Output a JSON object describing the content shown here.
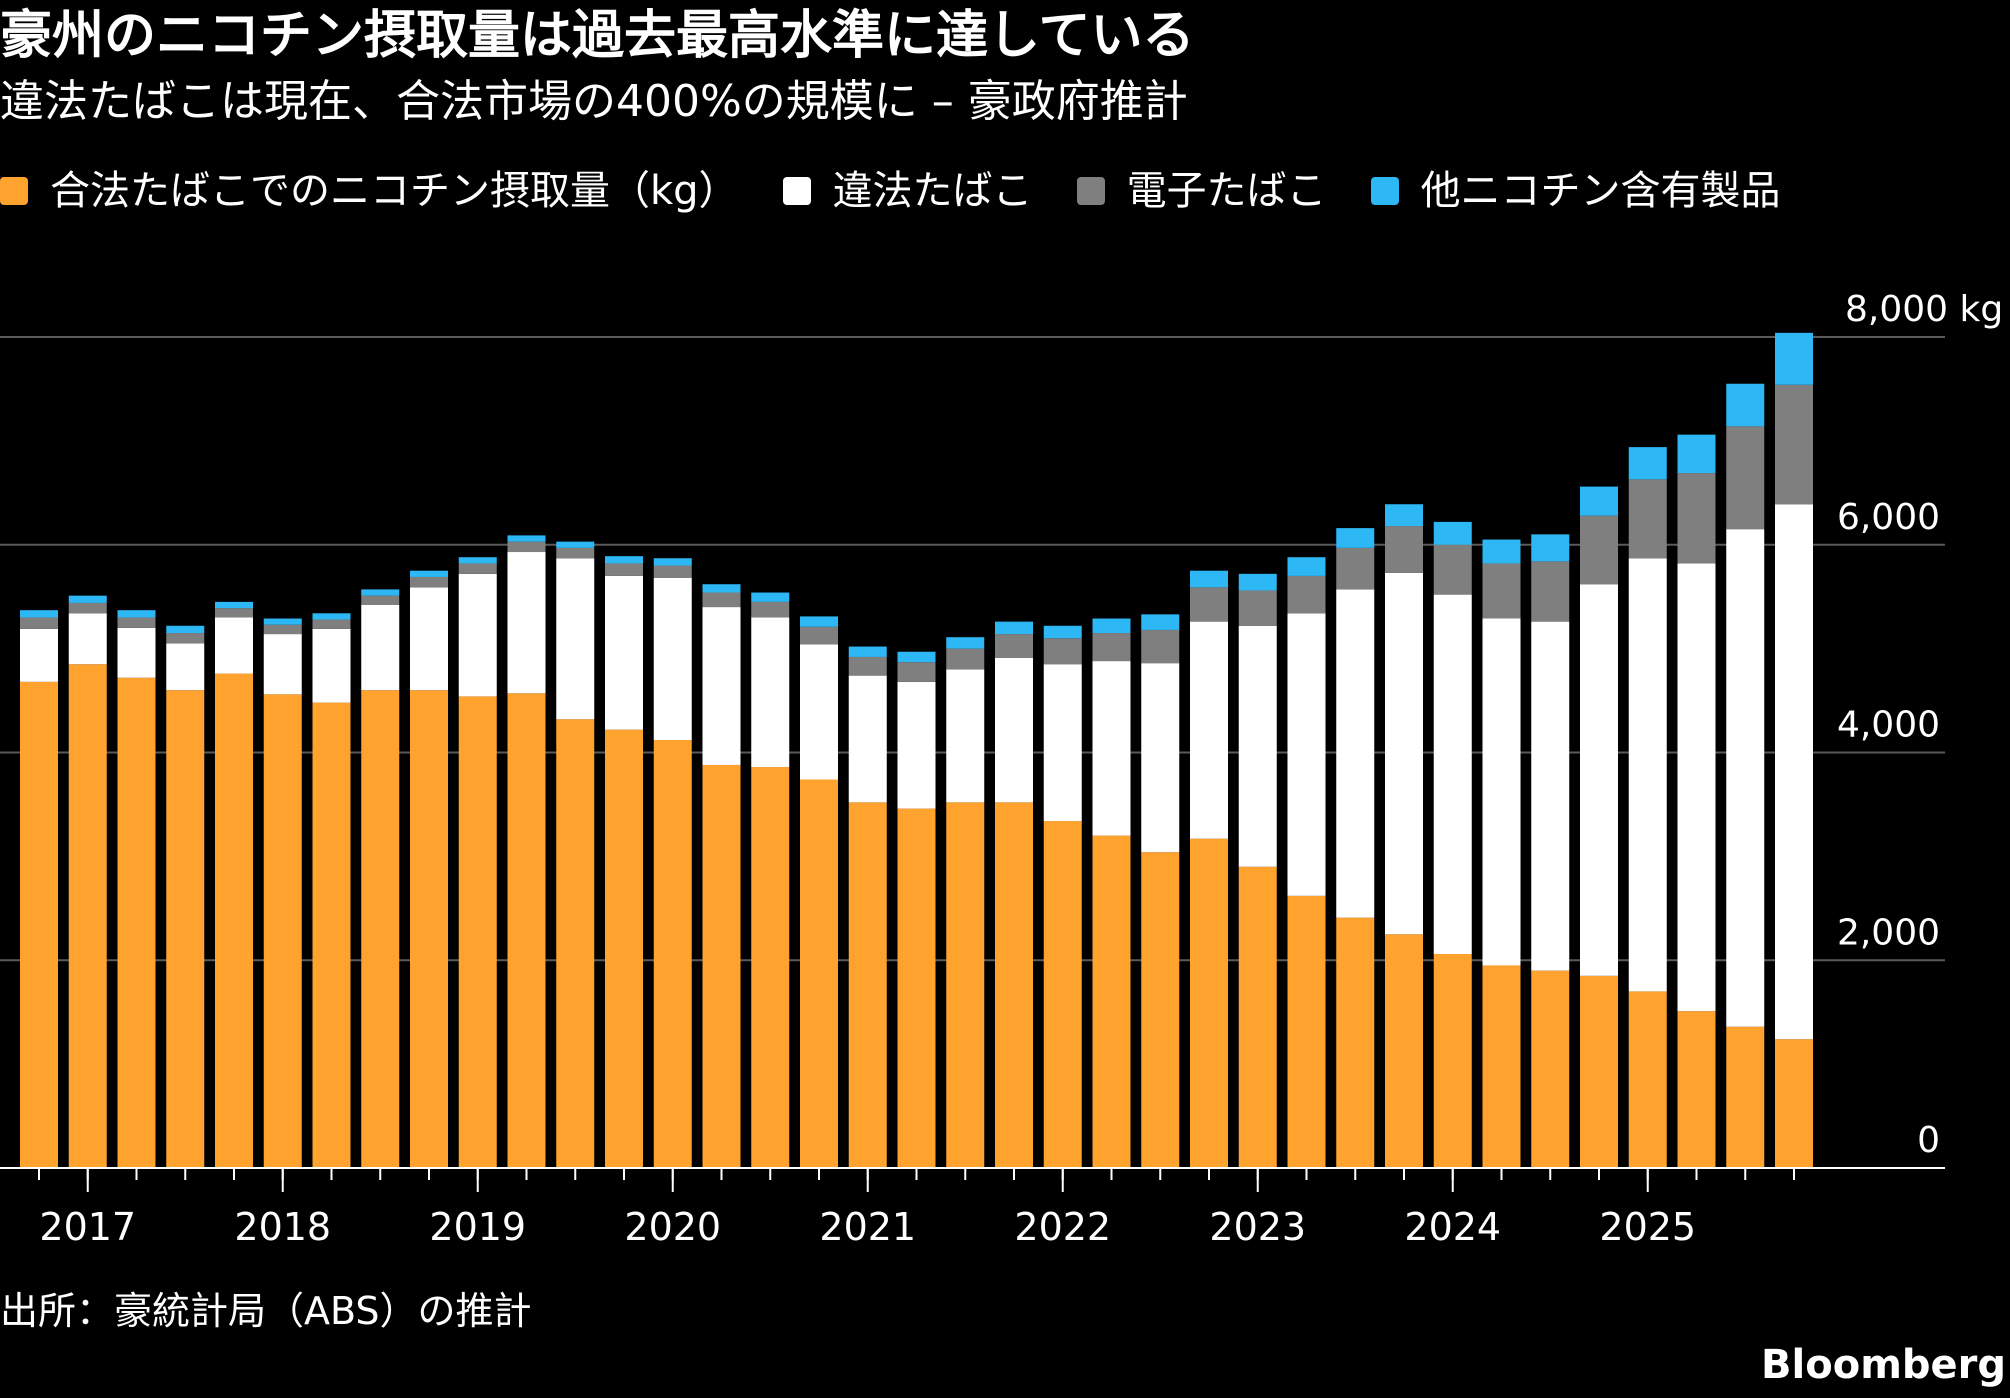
{
  "title": "豪州のニコチン摂取量は過去最高水準に達している",
  "subtitle": "違法たばこは現在、合法市場の400%の規模に – 豪政府推計",
  "source": "出所：豪統計局（ABS）の推計",
  "brand": "Bloomberg",
  "colors": {
    "background": "#000000",
    "legal": "#FFA22E",
    "illicit": "#FFFFFF",
    "ecig": "#7F7F7F",
    "other": "#2DB8F5",
    "grid": "#5A5A5A",
    "axis": "#FFFFFF"
  },
  "chart_data": {
    "type": "bar",
    "stacked": true,
    "categories": [
      "2016Q4",
      "2017Q1",
      "2017Q2",
      "2017Q3",
      "2017Q4",
      "2018Q1",
      "2018Q2",
      "2018Q3",
      "2018Q4",
      "2019Q1",
      "2019Q2",
      "2019Q3",
      "2019Q4",
      "2020Q1",
      "2020Q2",
      "2020Q3",
      "2020Q4",
      "2021Q1",
      "2021Q2",
      "2021Q3",
      "2021Q4",
      "2022Q1",
      "2022Q2",
      "2022Q3",
      "2022Q4",
      "2023Q1",
      "2023Q2",
      "2023Q3",
      "2023Q4",
      "2024Q1",
      "2024Q2",
      "2024Q3",
      "2024Q4",
      "2025Q1",
      "2025Q2",
      "2025Q3",
      "2025Q4"
    ],
    "series": [
      {
        "name": "合法たばこでのニコチン摂取量（kg）",
        "color": "#FFA22E",
        "values": [
          4680,
          4850,
          4720,
          4600,
          4760,
          4560,
          4480,
          4600,
          4600,
          4540,
          4570,
          4320,
          4220,
          4120,
          3880,
          3860,
          3740,
          3520,
          3460,
          3520,
          3520,
          3340,
          3200,
          3040,
          3170,
          2900,
          2620,
          2410,
          2250,
          2060,
          1950,
          1900,
          1850,
          1700,
          1510,
          1360,
          1240
        ]
      },
      {
        "name": "違法たばこ",
        "color": "#FFFFFF",
        "values": [
          510,
          490,
          480,
          450,
          540,
          580,
          710,
          820,
          990,
          1180,
          1360,
          1550,
          1480,
          1560,
          1520,
          1440,
          1300,
          1220,
          1220,
          1280,
          1390,
          1510,
          1680,
          1820,
          2090,
          2320,
          2720,
          3160,
          3480,
          3460,
          3340,
          3360,
          3770,
          4170,
          4310,
          4790,
          5150
        ]
      },
      {
        "name": "電子たばこ",
        "color": "#7F7F7F",
        "values": [
          110,
          100,
          100,
          100,
          90,
          90,
          90,
          90,
          100,
          100,
          100,
          100,
          120,
          120,
          140,
          150,
          170,
          180,
          190,
          200,
          230,
          250,
          270,
          320,
          330,
          340,
          360,
          400,
          450,
          480,
          530,
          580,
          660,
          760,
          870,
          990,
          1150
        ]
      },
      {
        "name": "他ニコチン含有製品",
        "color": "#2DB8F5",
        "values": [
          70,
          70,
          70,
          70,
          60,
          60,
          60,
          60,
          60,
          60,
          60,
          60,
          70,
          70,
          80,
          90,
          100,
          100,
          100,
          110,
          120,
          120,
          140,
          150,
          160,
          160,
          180,
          190,
          210,
          220,
          230,
          260,
          280,
          310,
          370,
          410,
          500
        ]
      }
    ],
    "year_labels": [
      "2017",
      "2018",
      "2019",
      "2020",
      "2021",
      "2022",
      "2023",
      "2024",
      "2025"
    ],
    "y_ticks": [
      "0",
      "2,000",
      "4,000",
      "6,000",
      "8,000 kg"
    ],
    "y_tick_values": [
      0,
      2000,
      4000,
      6000,
      8000
    ],
    "ylim": [
      0,
      8000
    ],
    "grid": true,
    "legend_position": "top-left"
  }
}
